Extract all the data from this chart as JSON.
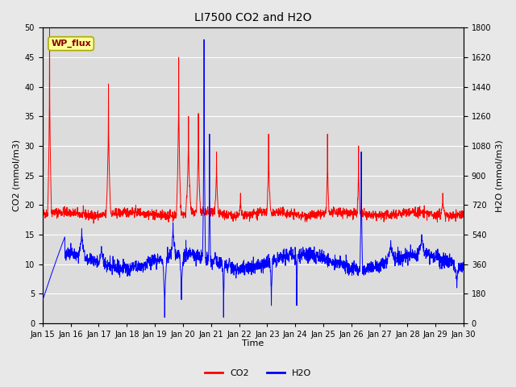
{
  "title": "LI7500 CO2 and H2O",
  "xlabel": "Time",
  "ylabel_left": "CO2 (mmol/m3)",
  "ylabel_right": "H2O (mmol/m3)",
  "co2_color": "#FF0000",
  "h2o_color": "#0000FF",
  "bg_color": "#E8E8E8",
  "plot_bg_color": "#DCDCDC",
  "ylim_left": [
    0,
    50
  ],
  "ylim_right": [
    0,
    1800
  ],
  "x_tick_labels": [
    "Jan 15",
    "Jan 16",
    "Jan 17",
    "Jan 18",
    "Jan 19",
    "Jan 20",
    "Jan 21",
    "Jan 22",
    "Jan 23",
    "Jan 24",
    "Jan 25",
    "Jan 26",
    "Jan 27",
    "Jan 28",
    "Jan 29",
    "Jan 30"
  ],
  "annotation_text": "WP_flux",
  "annotation_color": "#8B0000",
  "annotation_bg": "#FFFF99",
  "annotation_edge": "#AAAA00",
  "legend_co2": "CO2",
  "legend_h2o": "H2O",
  "title_fontsize": 10,
  "axis_label_fontsize": 8,
  "tick_fontsize": 7,
  "legend_fontsize": 8
}
